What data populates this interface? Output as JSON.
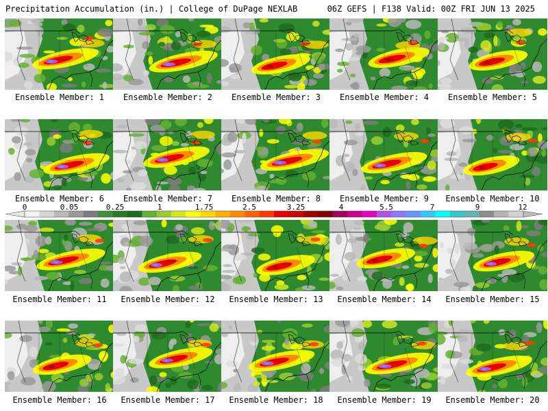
{
  "header": {
    "left": "Precipitation Accumulation (in.) | College of DuPage NEXLAB",
    "right": "06Z GEFS | F138 Valid: 00Z FRI JUN 13 2025"
  },
  "colorbar": {
    "labels": [
      "0",
      "0.05",
      "0.25",
      "1",
      "1.75",
      "2.5",
      "3.25",
      "4",
      "5.5",
      "7",
      "9",
      "12"
    ],
    "colors": [
      "#f2f2f2",
      "#d6d6d6",
      "#b8b8b8",
      "#9a9a9a",
      "#7c7c7c",
      "#3f8f3f",
      "#2a7a2a",
      "#1e6b1e",
      "#66b032",
      "#9acd32",
      "#d4e61e",
      "#ffff00",
      "#ffd700",
      "#ffb000",
      "#ff8c00",
      "#ff6400",
      "#ff3c00",
      "#e60000",
      "#c80000",
      "#a00000",
      "#800000",
      "#a0005a",
      "#c8008c",
      "#e600c8",
      "#b450e6",
      "#8c78ff",
      "#6496ff",
      "#32c8ff",
      "#00ffff",
      "#32c8c8",
      "#64b4b4",
      "#8c8c8c",
      "#b4b4b4",
      "#d2d2d2"
    ]
  },
  "members": [
    {
      "label": "Ensemble Member: 1",
      "intensity": 0.8,
      "core": "purple"
    },
    {
      "label": "Ensemble Member: 2",
      "intensity": 0.9,
      "core": "purple"
    },
    {
      "label": "Ensemble Member: 3",
      "intensity": 0.5,
      "core": "red"
    },
    {
      "label": "Ensemble Member: 4",
      "intensity": 0.6,
      "core": "red"
    },
    {
      "label": "Ensemble Member: 5",
      "intensity": 0.5,
      "core": "red"
    },
    {
      "label": "Ensemble Member: 6",
      "intensity": 0.8,
      "core": "purple"
    },
    {
      "label": "Ensemble Member: 7",
      "intensity": 0.8,
      "core": "purple"
    },
    {
      "label": "Ensemble Member: 8",
      "intensity": 0.9,
      "core": "purple"
    },
    {
      "label": "Ensemble Member: 9",
      "intensity": 0.8,
      "core": "purple"
    },
    {
      "label": "Ensemble Member: 10",
      "intensity": 0.4,
      "core": "red"
    },
    {
      "label": "Ensemble Member: 11",
      "intensity": 0.9,
      "core": "purple"
    },
    {
      "label": "Ensemble Member: 12",
      "intensity": 0.7,
      "core": "purple"
    },
    {
      "label": "Ensemble Member: 13",
      "intensity": 0.5,
      "core": "red"
    },
    {
      "label": "Ensemble Member: 14",
      "intensity": 0.5,
      "core": "red"
    },
    {
      "label": "Ensemble Member: 15",
      "intensity": 0.6,
      "core": "purple"
    },
    {
      "label": "Ensemble Member: 16",
      "intensity": 0.5,
      "core": "red"
    },
    {
      "label": "Ensemble Member: 17",
      "intensity": 0.7,
      "core": "purple"
    },
    {
      "label": "Ensemble Member: 18",
      "intensity": 0.8,
      "core": "purple"
    },
    {
      "label": "Ensemble Member: 19",
      "intensity": 0.9,
      "core": "purple"
    },
    {
      "label": "Ensemble Member: 20",
      "intensity": 0.8,
      "core": "purple"
    }
  ]
}
